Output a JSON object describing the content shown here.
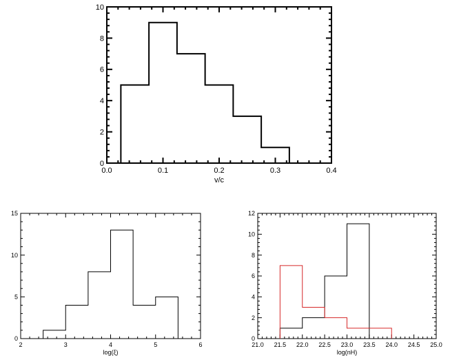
{
  "chart_data": [
    {
      "type": "bar",
      "histogram": true,
      "xlabel": "v/c",
      "ylabel": "",
      "title": "",
      "xlim": [
        0.0,
        0.4
      ],
      "ylim": [
        0,
        10
      ],
      "xticks": [
        0.0,
        0.1,
        0.2,
        0.3,
        0.4
      ],
      "xtick_labels": [
        "0.0",
        "0.1",
        "0.2",
        "0.3",
        "0.4"
      ],
      "yticks": [
        0,
        2,
        4,
        6,
        8,
        10
      ],
      "ytick_labels": [
        "0",
        "2",
        "4",
        "6",
        "8",
        "10"
      ],
      "grid": false,
      "series": [
        {
          "color": "#000000",
          "bin_edges": [
            0.025,
            0.075,
            0.125,
            0.175,
            0.225,
            0.275,
            0.325
          ],
          "values": [
            5,
            9,
            7,
            5,
            3,
            1
          ]
        }
      ]
    },
    {
      "type": "bar",
      "histogram": true,
      "xlabel": "log(ξ)",
      "ylabel": "",
      "title": "",
      "xlim": [
        2,
        6
      ],
      "ylim": [
        0,
        15
      ],
      "xticks": [
        2,
        3,
        4,
        5,
        6
      ],
      "xtick_labels": [
        "2",
        "3",
        "4",
        "5",
        "6"
      ],
      "yticks": [
        0,
        5,
        10,
        15
      ],
      "ytick_labels": [
        "0",
        "5",
        "10",
        "15"
      ],
      "grid": false,
      "series": [
        {
          "color": "#000000",
          "bin_edges": [
            2.5,
            3.0,
            3.5,
            4.0,
            4.5,
            5.0,
            5.5
          ],
          "values": [
            1,
            4,
            8,
            13,
            4,
            5
          ]
        }
      ]
    },
    {
      "type": "bar",
      "histogram": true,
      "xlabel": "log(nH)",
      "ylabel": "",
      "title": "",
      "xlim": [
        21.0,
        25.0
      ],
      "ylim": [
        0,
        12
      ],
      "xticks": [
        21.0,
        21.5,
        22.0,
        22.5,
        23.0,
        23.5,
        24.0,
        24.5,
        25.0
      ],
      "xtick_labels": [
        "21.0",
        "21.5",
        "22.0",
        "22.5",
        "23.0",
        "23.5",
        "24.0",
        "24.5",
        "25.0"
      ],
      "yticks": [
        0,
        2,
        4,
        6,
        8,
        10,
        12
      ],
      "ytick_labels": [
        "0",
        "2",
        "4",
        "6",
        "8",
        "10",
        "12"
      ],
      "grid": false,
      "series": [
        {
          "color": "#000000",
          "bin_edges": [
            21.5,
            22.0,
            22.5,
            23.0,
            23.5
          ],
          "values": [
            1,
            2,
            6,
            11
          ]
        },
        {
          "color": "#d62728",
          "bin_edges": [
            21.5,
            22.0,
            22.5,
            23.0,
            23.5,
            24.0
          ],
          "values": [
            7,
            3,
            2,
            1,
            1
          ]
        }
      ]
    }
  ]
}
